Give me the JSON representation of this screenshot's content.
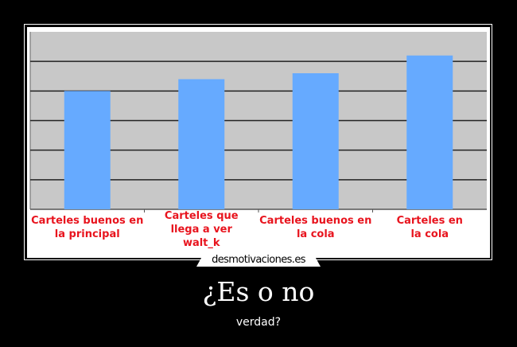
{
  "poster": {
    "title": "¿Es o no",
    "subtitle": "verdad?",
    "watermark": "desmotivaciones.es"
  },
  "colors": {
    "background": "#000000",
    "plot_background": "#c8c8c8",
    "bar": "#66aaff",
    "label": "#e8141e",
    "gridline": "#222222"
  },
  "chart_data": {
    "type": "bar",
    "title": "",
    "xlabel": "",
    "ylabel": "",
    "categories": [
      [
        "Carteles buenos en",
        "la principal"
      ],
      [
        "Carteles que",
        "llega a ver",
        "walt_k"
      ],
      [
        "Carteles buenos en",
        "la cola"
      ],
      [
        "Carteles en",
        "la cola"
      ]
    ],
    "values": [
      4.0,
      4.4,
      4.6,
      5.2
    ],
    "ylim": [
      0,
      6
    ],
    "grid": true,
    "ytick_labels_shown": false
  }
}
